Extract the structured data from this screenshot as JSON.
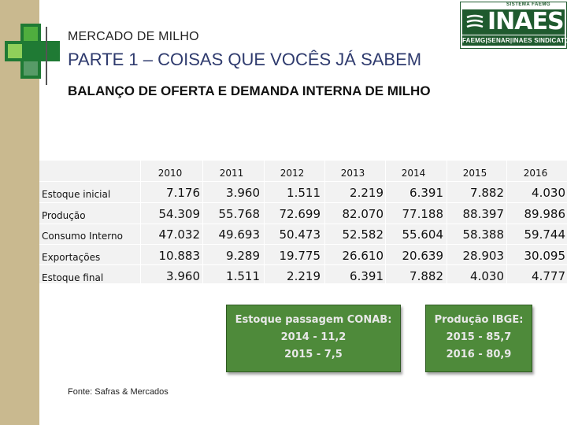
{
  "header": {
    "title": "MERCADO DE MILHO",
    "subtitle": "PARTE 1 – COISAS QUE VOCÊS JÁ SABEM",
    "heading": "BALANÇO DE OFERTA E DEMANDA INTERNA DE MILHO"
  },
  "logo": {
    "top": "SISTEMA FAEMG",
    "word": "INAES",
    "bottom": "FAEMG|SENAR|INAES SINDICATOS"
  },
  "table": {
    "years": [
      "2010",
      "2011",
      "2012",
      "2013",
      "2014",
      "2015",
      "2016"
    ],
    "rows": [
      {
        "label": "Estoque inicial",
        "values": [
          "7.176",
          "3.960",
          "1.511",
          "2.219",
          "6.391",
          "7.882",
          "4.030"
        ]
      },
      {
        "label": "Produção",
        "values": [
          "54.309",
          "55.768",
          "72.699",
          "82.070",
          "77.188",
          "88.397",
          "89.986"
        ]
      },
      {
        "label": "Consumo Interno",
        "values": [
          "47.032",
          "49.693",
          "50.473",
          "52.582",
          "55.604",
          "58.388",
          "59.744"
        ]
      },
      {
        "label": "Exportações",
        "values": [
          "10.883",
          "9.289",
          "19.775",
          "26.610",
          "20.639",
          "28.903",
          "30.095"
        ]
      },
      {
        "label": "Estoque final",
        "values": [
          "3.960",
          "1.511",
          "2.219",
          "6.391",
          "7.882",
          "4.030",
          "4.777"
        ]
      }
    ]
  },
  "callouts": {
    "conab": [
      "Estoque passagem CONAB:",
      "2014 - 11,2",
      "2015 - 7,5"
    ],
    "ibge": [
      "Produção IBGE:",
      "2015 - 85,7",
      "2016 - 80,9"
    ]
  },
  "source": "Fonte: Safras & Mercados",
  "colors": {
    "green": "#4e8a3a",
    "dark_green": "#1f5a2e",
    "sidebar": "#c9b98f",
    "title_blue": "#2f3b6e"
  }
}
